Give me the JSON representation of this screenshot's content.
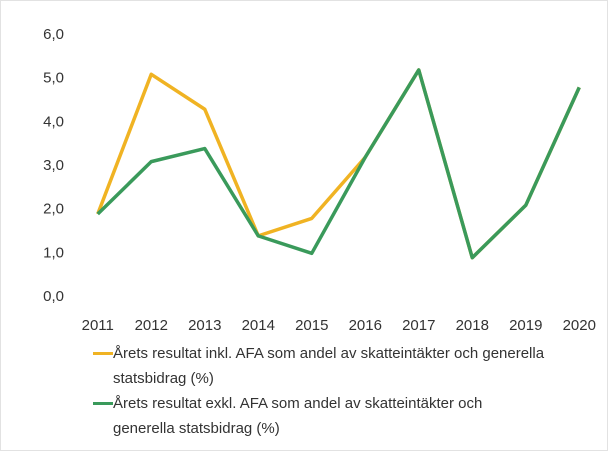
{
  "chart_data": {
    "type": "line",
    "categories": [
      "2011",
      "2012",
      "2013",
      "2014",
      "2015",
      "2016",
      "2017",
      "2018",
      "2019",
      "2020"
    ],
    "series": [
      {
        "name": "Årets resultat inkl. AFA som andel av skatteintäkter och generella statsbidrag (%)",
        "color": "#f0b323",
        "values": [
          1.9,
          5.1,
          4.3,
          1.4,
          1.8,
          3.2,
          5.2,
          0.9,
          2.1,
          4.8
        ]
      },
      {
        "name": "Årets resultat exkl. AFA som andel av skatteintäkter och generella statsbidrag (%)",
        "color": "#3a9a5b",
        "values": [
          1.9,
          3.1,
          3.4,
          1.4,
          1.0,
          3.2,
          5.2,
          0.9,
          2.1,
          4.8
        ]
      }
    ],
    "ylim": [
      0,
      6
    ],
    "yticks": [
      {
        "value": 0,
        "label": "0,0"
      },
      {
        "value": 1,
        "label": "1,0"
      },
      {
        "value": 2,
        "label": "2,0"
      },
      {
        "value": 3,
        "label": "3,0"
      },
      {
        "value": 4,
        "label": "4,0"
      },
      {
        "value": 5,
        "label": "5,0"
      },
      {
        "value": 6,
        "label": "6,0"
      }
    ],
    "grid": false
  }
}
